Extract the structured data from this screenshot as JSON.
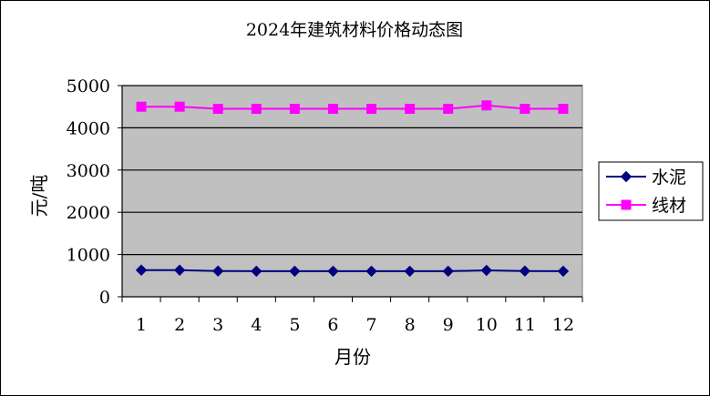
{
  "chart_data": {
    "type": "line",
    "title": "2024年建筑材料价格动态图",
    "xlabel": "月份",
    "ylabel": "元/吨",
    "categories": [
      "1",
      "2",
      "3",
      "4",
      "5",
      "6",
      "7",
      "8",
      "9",
      "10",
      "11",
      "12"
    ],
    "ylim": [
      0,
      5000
    ],
    "yticks": [
      "0",
      "1000",
      "2000",
      "3000",
      "4000",
      "5000"
    ],
    "grid": true,
    "legend": "right",
    "series": [
      {
        "name": "水泥",
        "color": "#000080",
        "marker": "diamond",
        "values": [
          630,
          630,
          610,
          605,
          605,
          605,
          605,
          605,
          605,
          625,
          610,
          605
        ]
      },
      {
        "name": "线材",
        "color": "#ff00ff",
        "marker": "square",
        "values": [
          4500,
          4500,
          4450,
          4450,
          4450,
          4450,
          4450,
          4450,
          4450,
          4530,
          4450,
          4450
        ]
      }
    ],
    "plot_background": "#c0c0c0"
  }
}
